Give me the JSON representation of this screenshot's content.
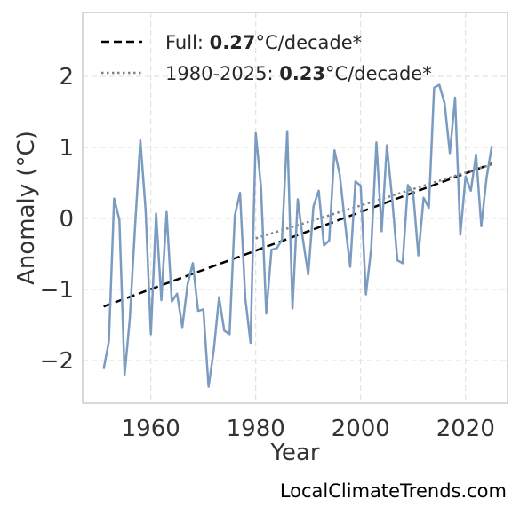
{
  "chart_data": {
    "type": "line",
    "xlabel": "Year",
    "ylabel": "Anomaly (°C)",
    "xlim": [
      1947,
      2028
    ],
    "ylim": [
      -2.6,
      2.9
    ],
    "xticks": [
      1960,
      1980,
      2000,
      2020
    ],
    "xtick_labels": [
      "1960",
      "1980",
      "2000",
      "2020"
    ],
    "yticks": [
      -2,
      -1,
      0,
      1,
      2
    ],
    "ytick_labels": [
      "−2",
      "−1",
      "0",
      "1",
      "2"
    ],
    "grid": true,
    "legend_position": "top-left",
    "colors": {
      "series": "#7b9cc0",
      "full_trend": "#000000",
      "recent_trend": "#808080",
      "grid": "#dcdcdc",
      "frame": "#cccccc"
    },
    "series": [
      {
        "x": [
          1951,
          1952,
          1953,
          1954,
          1955,
          1956,
          1957,
          1958,
          1959,
          1960,
          1961,
          1962,
          1963,
          1964,
          1965,
          1966,
          1967,
          1968,
          1969,
          1970,
          1971,
          1972,
          1973,
          1974,
          1975,
          1976,
          1977,
          1978,
          1979,
          1980,
          1981,
          1982,
          1983,
          1984,
          1985,
          1986,
          1987,
          1988,
          1989,
          1990,
          1991,
          1992,
          1993,
          1994,
          1995,
          1996,
          1997,
          1998,
          1999,
          2000,
          2001,
          2002,
          2003,
          2004,
          2005,
          2006,
          2007,
          2008,
          2009,
          2010,
          2011,
          2012,
          2013,
          2014,
          2015,
          2016,
          2017,
          2018,
          2019,
          2020,
          2021,
          2022,
          2023,
          2024,
          2025
        ],
        "values": [
          -2.12,
          -1.73,
          0.28,
          -0.02,
          -2.2,
          -1.4,
          -0.1,
          1.1,
          0.12,
          -1.63,
          0.07,
          -1.15,
          0.09,
          -1.17,
          -1.06,
          -1.53,
          -0.93,
          -0.63,
          -1.3,
          -1.28,
          -2.37,
          -1.85,
          -1.11,
          -1.58,
          -1.63,
          0.04,
          0.36,
          -1.12,
          -1.75,
          1.2,
          0.44,
          -1.34,
          -0.44,
          -0.42,
          -0.3,
          1.23,
          -1.27,
          0.27,
          -0.3,
          -0.79,
          0.17,
          0.39,
          -0.38,
          -0.31,
          0.96,
          0.62,
          -0.05,
          -0.68,
          0.52,
          0.46,
          -1.07,
          -0.43,
          1.07,
          -0.18,
          1.03,
          0.28,
          -0.59,
          -0.63,
          0.47,
          0.36,
          -0.52,
          0.29,
          0.15,
          1.84,
          1.88,
          1.62,
          0.92,
          1.7,
          -0.23,
          0.59,
          0.39,
          0.9,
          -0.11,
          0.57,
          1.02
        ]
      }
    ],
    "trends": [
      {
        "x": [
          1951,
          2025
        ],
        "values": [
          -1.24,
          0.77
        ]
      },
      {
        "x": [
          1980,
          2025
        ],
        "values": [
          -0.28,
          0.76
        ]
      }
    ],
    "legend": [
      {
        "prefix": "Full: ",
        "value": "0.27",
        "suffix": "°C/decade*"
      },
      {
        "prefix": "1980-2025: ",
        "value": "0.23",
        "suffix": "°C/decade*"
      }
    ]
  },
  "source": "LocalClimateTrends.com"
}
